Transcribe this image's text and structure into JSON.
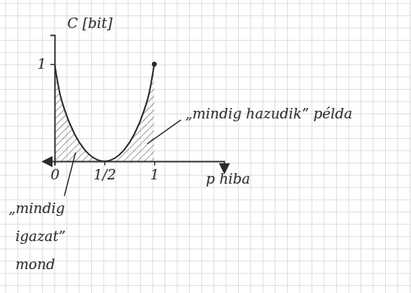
{
  "chart_data": {
    "type": "line",
    "x_label": "p hiba",
    "y_label": "C [bit]",
    "x": [
      0,
      0.05,
      0.1,
      0.2,
      0.3,
      0.4,
      0.5,
      0.6,
      0.7,
      0.8,
      0.9,
      0.95,
      1
    ],
    "values": [
      1,
      0.71,
      0.53,
      0.28,
      0.12,
      0.03,
      0,
      0.03,
      0.12,
      0.28,
      0.53,
      0.71,
      1
    ],
    "xlim": [
      0,
      1.7
    ],
    "ylim": [
      0,
      1.3
    ],
    "xticks": [
      0,
      {
        "value": 0.5,
        "label": "1/2"
      },
      1
    ],
    "yticks": [
      1
    ],
    "color": "#2b2b2b",
    "annotations": [
      {
        "text": "„mindig hazudik” példa",
        "x": 0.93,
        "y": 0.18
      },
      {
        "text": "„mindig igazat” mond",
        "x": 0.21,
        "y": 0.09
      }
    ]
  }
}
